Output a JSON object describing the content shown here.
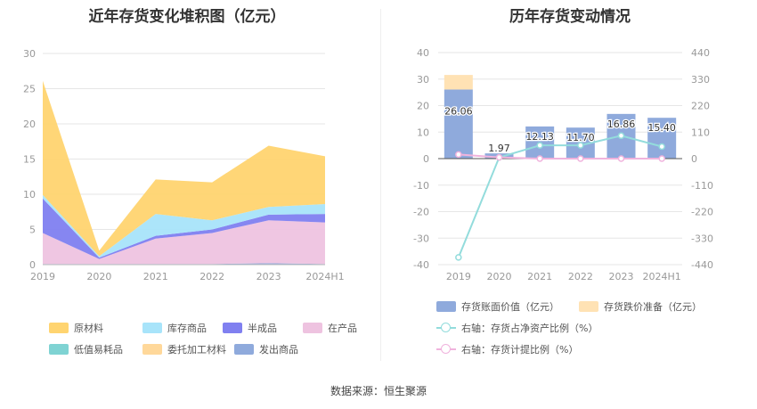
{
  "chart_data": [
    {
      "type": "area",
      "title": "近年存货变化堆积图（亿元）",
      "categories": [
        "2019",
        "2020",
        "2021",
        "2022",
        "2023",
        "2024H1"
      ],
      "ylim": [
        0,
        30
      ],
      "yticks": [
        0,
        5,
        10,
        15,
        20,
        25,
        30
      ],
      "grid": true,
      "legend_position": "bottom",
      "series": [
        {
          "name": "发出商品",
          "color": "#8FAADC",
          "values": [
            0.1,
            0.1,
            0.1,
            0.1,
            0.2,
            0.1
          ]
        },
        {
          "name": "委托加工材料",
          "color": "#FFD89A",
          "values": [
            0,
            0,
            0,
            0,
            0,
            0
          ]
        },
        {
          "name": "低值易耗品",
          "color": "#7FD3D3",
          "values": [
            0,
            0,
            0,
            0,
            0,
            0
          ]
        },
        {
          "name": "在产品",
          "color": "#EEC3E0",
          "values": [
            4.4,
            0.7,
            3.6,
            4.4,
            6.1,
            5.9
          ]
        },
        {
          "name": "半成品",
          "color": "#8080F0",
          "values": [
            4.9,
            0.2,
            0.4,
            0.5,
            0.8,
            1.2
          ]
        },
        {
          "name": "库存商品",
          "color": "#A8E4FA",
          "values": [
            0.5,
            0.2,
            3.1,
            1.3,
            1.1,
            1.4
          ]
        },
        {
          "name": "原材料",
          "color": "#FFD470",
          "values": [
            16.2,
            0.8,
            4.9,
            5.4,
            8.7,
            6.8
          ]
        }
      ],
      "legend_order": [
        "原材料",
        "库存商品",
        "半成品",
        "在产品",
        "低值易耗品",
        "委托加工材料",
        "发出商品"
      ]
    },
    {
      "type": "bar",
      "title": "历年存货变动情况",
      "categories": [
        "2019",
        "2020",
        "2021",
        "2022",
        "2023",
        "2024H1"
      ],
      "ylim": [
        -40,
        40
      ],
      "yticks": [
        -40,
        -30,
        -20,
        -10,
        0,
        10,
        20,
        30,
        40
      ],
      "y2lim": [
        -440,
        440
      ],
      "y2ticks": [
        -440,
        -330,
        -220,
        -110,
        0,
        110,
        220,
        330,
        440
      ],
      "grid": true,
      "legend_position": "bottom",
      "series": [
        {
          "name": "存货账面价值（亿元）",
          "type": "bar",
          "color": "#8FAADC",
          "values": [
            26.06,
            1.97,
            12.13,
            11.7,
            16.86,
            15.4
          ],
          "labels": [
            "26.06",
            "1.97",
            "12.13",
            "11.70",
            "16.86",
            "15.40"
          ]
        },
        {
          "name": "存货跌价准备（亿元）",
          "type": "bar",
          "color": "#FFE2B4",
          "values": [
            5.5,
            0,
            0,
            0,
            0,
            0
          ]
        },
        {
          "name": "右轴：存货占净资产比例（%）",
          "type": "line",
          "axis": "right",
          "color": "#93DCDC",
          "values": [
            -410,
            5,
            55,
            55,
            95,
            50
          ]
        },
        {
          "name": "右轴：存货计提比例（%）",
          "type": "line",
          "axis": "right",
          "color": "#F0B3DD",
          "values": [
            17,
            5,
            0,
            0,
            0,
            0
          ]
        }
      ]
    }
  ],
  "source": "数据来源：恒生聚源"
}
